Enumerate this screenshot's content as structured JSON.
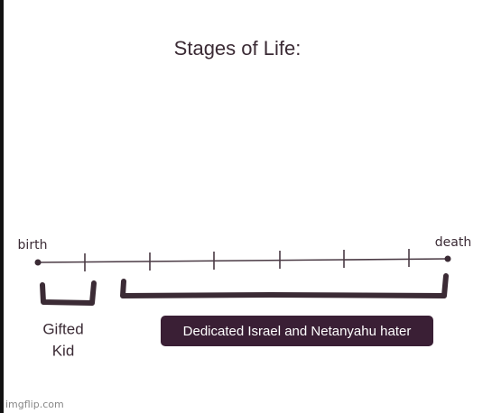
{
  "title": "Stages of Life:",
  "timeline": {
    "start_label": "birth",
    "end_label": "death"
  },
  "stages": [
    {
      "label_lines": [
        "Gifted",
        "Kid"
      ]
    },
    {
      "label": "Dedicated Israel and Netanyahu hater"
    }
  ],
  "watermark": "imgflip.com"
}
